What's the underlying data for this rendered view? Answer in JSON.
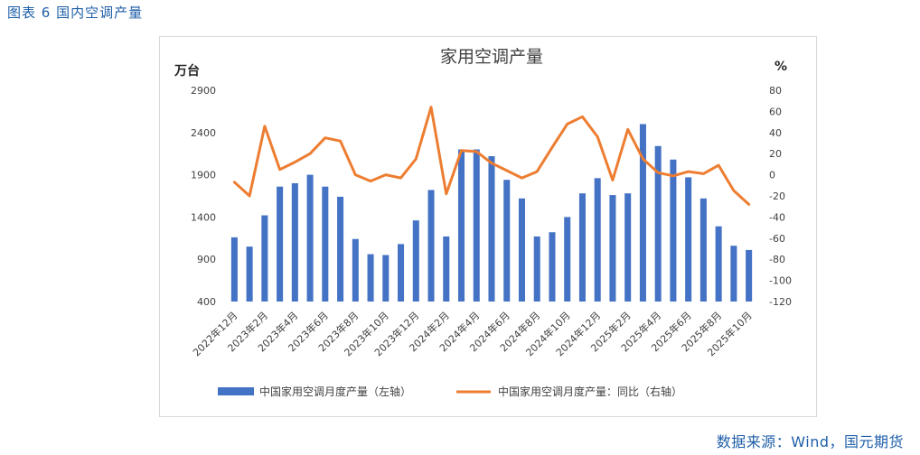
{
  "figure_title": "图表 6 国内空调产量",
  "source_text": "数据来源：Wind，国元期货",
  "chart_data": {
    "type": "bar",
    "title": "家用空调产量",
    "left_unit": "万台",
    "right_unit": "%",
    "left_axis": {
      "min": 400,
      "max": 2900,
      "ticks": [
        "400",
        "900",
        "1400",
        "1900",
        "2400",
        "2900"
      ]
    },
    "right_axis": {
      "min": -120,
      "max": 80,
      "ticks": [
        "-120",
        "-100",
        "-80",
        "-60",
        "-40",
        "-20",
        "0",
        "20",
        "40",
        "60",
        "80"
      ]
    },
    "categories": [
      "2022年12月",
      "2023年1月",
      "2023年2月",
      "2023年3月",
      "2023年4月",
      "2023年5月",
      "2023年6月",
      "2023年7月",
      "2023年8月",
      "2023年9月",
      "2023年10月",
      "2023年11月",
      "2023年12月",
      "2024年1月",
      "2024年2月",
      "2024年3月",
      "2024年4月",
      "2024年5月",
      "2024年6月",
      "2024年7月",
      "2024年8月",
      "2024年9月",
      "2024年10月",
      "2024年11月",
      "2024年12月",
      "2025年1月",
      "2025年2月",
      "2025年3月",
      "2025年4月",
      "2025年5月",
      "2025年6月",
      "2025年7月",
      "2025年8月",
      "2025年9月",
      "2025年10月"
    ],
    "shown_tick_labels": [
      "2022年12月",
      "2023年2月",
      "2023年4月",
      "2023年6月",
      "2023年8月",
      "2023年10月",
      "2023年12月",
      "2024年2月",
      "2024年4月",
      "2024年6月",
      "2024年8月",
      "2024年10月",
      "2024年12月",
      "2025年2月",
      "2025年4月",
      "2025年6月",
      "2025年8月",
      "2025年10月"
    ],
    "series": [
      {
        "name": "中国家用空调月度产量（左轴）",
        "kind": "bar",
        "axis": "left",
        "color": "#4472c4",
        "values": [
          1160,
          1050,
          1420,
          1760,
          1800,
          1900,
          1760,
          1640,
          1140,
          960,
          950,
          1080,
          1360,
          1720,
          1170,
          2200,
          2200,
          2120,
          1840,
          1620,
          1170,
          1220,
          1400,
          1680,
          1860,
          1660,
          1680,
          2500,
          2240,
          2080,
          1870,
          1620,
          1290,
          1060,
          1010
        ]
      },
      {
        "name": "中国家用空调月度产量：同比（右轴）",
        "kind": "line",
        "axis": "right",
        "color": "#ed7d31",
        "values": [
          -7,
          -20,
          46,
          5,
          12,
          20,
          35,
          32,
          0,
          -6,
          0,
          -3,
          15,
          64,
          -18,
          23,
          22,
          11,
          4,
          -3,
          3,
          26,
          48,
          55,
          36,
          -5,
          43,
          15,
          2,
          -1,
          3,
          1,
          9,
          -15,
          -28
        ]
      }
    ],
    "legend_position": "bottom",
    "grid": false
  }
}
